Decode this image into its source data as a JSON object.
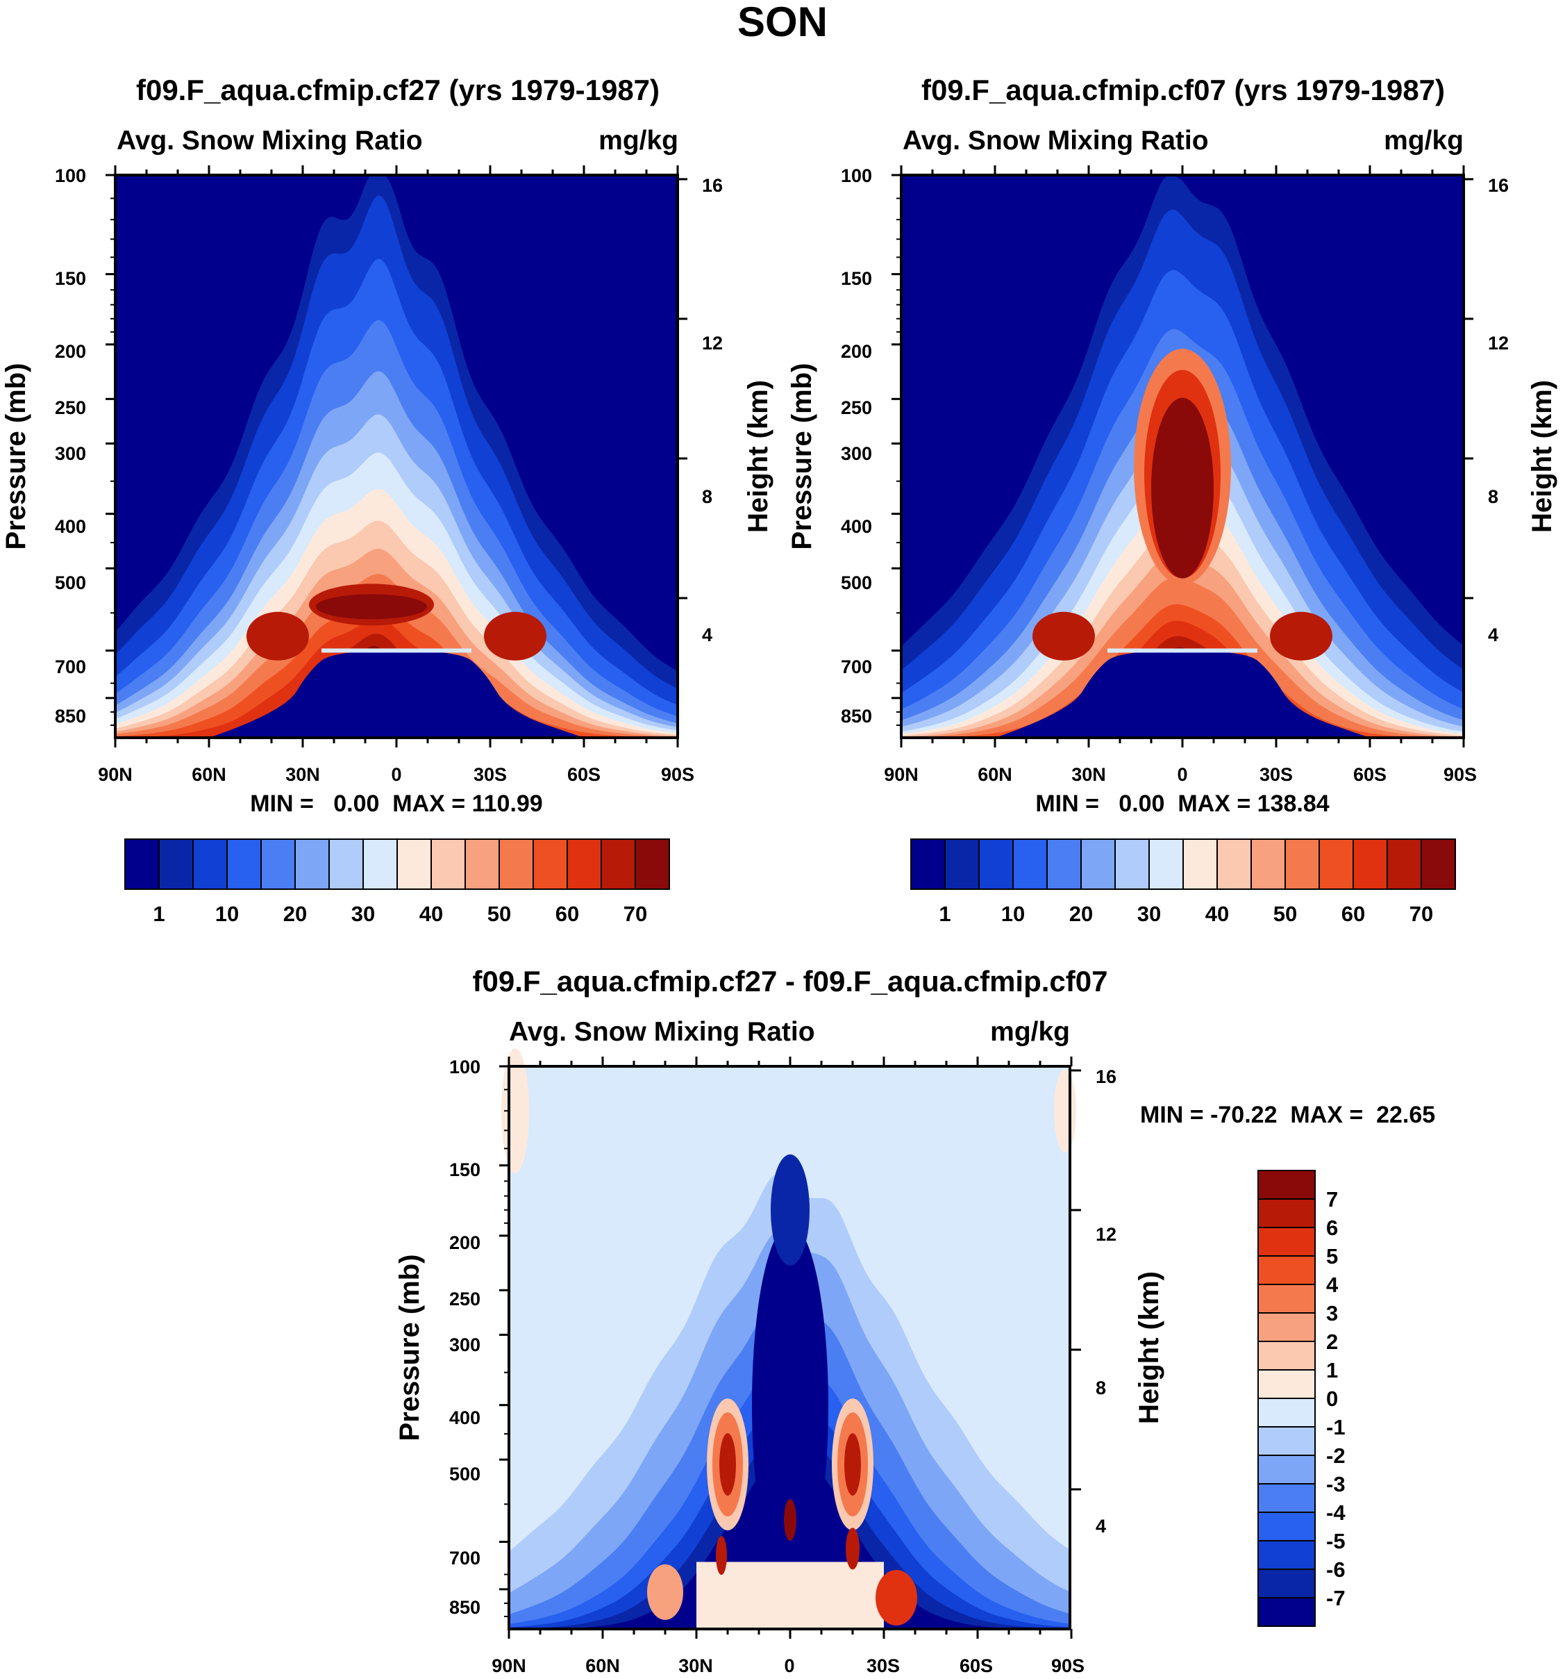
{
  "figure_title": "SON",
  "chart_data": [
    {
      "type": "heatmap",
      "title": "f09.F_aqua.cfmip.cf27 (yrs 1979-1987)",
      "left_subtitle": "Avg. Snow Mixing Ratio",
      "right_subtitle": "mg/kg",
      "xlabel": "",
      "ylabel": "Pressure (mb)",
      "ylabel_right": "Height (km)",
      "x_ticks": [
        "90N",
        "60N",
        "30N",
        "0",
        "30S",
        "60S",
        "90S"
      ],
      "x_values": [
        90,
        60,
        30,
        0,
        -30,
        -60,
        -90
      ],
      "y_ticks": [
        "100",
        "150",
        "200",
        "250",
        "300",
        "400",
        "500",
        "700",
        "850"
      ],
      "y_values": [
        100,
        150,
        200,
        250,
        300,
        400,
        500,
        700,
        850
      ],
      "y_right_ticks": [
        "16",
        "12",
        "8",
        "4"
      ],
      "y_right_values": [
        16,
        12,
        8,
        4
      ],
      "ylim": [
        100,
        1000
      ],
      "min_label": "MIN =   0.00  MAX = 110.99",
      "min": 0.0,
      "max": 110.99,
      "peak_lat": 8,
      "colorbar_labels": [
        "1",
        "10",
        "20",
        "30",
        "40",
        "50",
        "60",
        "70"
      ],
      "colorbar_colors": [
        "#00008c",
        "#0a26a8",
        "#1040d4",
        "#2860f0",
        "#4a7ef2",
        "#7ea6f6",
        "#b0ccfa",
        "#d8eafc",
        "#fde9dc",
        "#fbc8b0",
        "#f8a17e",
        "#f47a4e",
        "#ef5022",
        "#e03210",
        "#b81a08",
        "#8a0a0a"
      ]
    },
    {
      "type": "heatmap",
      "title": "f09.F_aqua.cfmip.cf07 (yrs 1979-1987)",
      "left_subtitle": "Avg. Snow Mixing Ratio",
      "right_subtitle": "mg/kg",
      "xlabel": "",
      "ylabel": "Pressure (mb)",
      "ylabel_right": "Height (km)",
      "x_ticks": [
        "90N",
        "60N",
        "30N",
        "0",
        "30S",
        "60S",
        "90S"
      ],
      "x_values": [
        90,
        60,
        30,
        0,
        -30,
        -60,
        -90
      ],
      "y_ticks": [
        "100",
        "150",
        "200",
        "250",
        "300",
        "400",
        "500",
        "700",
        "850"
      ],
      "y_values": [
        100,
        150,
        200,
        250,
        300,
        400,
        500,
        700,
        850
      ],
      "y_right_ticks": [
        "16",
        "12",
        "8",
        "4"
      ],
      "y_right_values": [
        16,
        12,
        8,
        4
      ],
      "ylim": [
        100,
        1000
      ],
      "min_label": "MIN =   0.00  MAX = 138.84",
      "min": 0.0,
      "max": 138.84,
      "peak_lat": 0,
      "colorbar_labels": [
        "1",
        "10",
        "20",
        "30",
        "40",
        "50",
        "60",
        "70"
      ],
      "colorbar_colors": [
        "#00008c",
        "#0a26a8",
        "#1040d4",
        "#2860f0",
        "#4a7ef2",
        "#7ea6f6",
        "#b0ccfa",
        "#d8eafc",
        "#fde9dc",
        "#fbc8b0",
        "#f8a17e",
        "#f47a4e",
        "#ef5022",
        "#e03210",
        "#b81a08",
        "#8a0a0a"
      ]
    },
    {
      "type": "heatmap",
      "title": "f09.F_aqua.cfmip.cf27 - f09.F_aqua.cfmip.cf07",
      "left_subtitle": "Avg. Snow Mixing Ratio",
      "right_subtitle": "mg/kg",
      "xlabel": "",
      "ylabel": "Pressure (mb)",
      "ylabel_right": "Height (km)",
      "x_ticks": [
        "90N",
        "60N",
        "30N",
        "0",
        "30S",
        "60S",
        "90S"
      ],
      "x_values": [
        90,
        60,
        30,
        0,
        -30,
        -60,
        -90
      ],
      "y_ticks": [
        "100",
        "150",
        "200",
        "250",
        "300",
        "400",
        "500",
        "700",
        "850"
      ],
      "y_values": [
        100,
        150,
        200,
        250,
        300,
        400,
        500,
        700,
        850
      ],
      "y_right_ticks": [
        "16",
        "12",
        "8",
        "4"
      ],
      "y_right_values": [
        16,
        12,
        8,
        4
      ],
      "ylim": [
        100,
        1000
      ],
      "min_label": "MIN = -70.22  MAX =  22.65",
      "min": -70.22,
      "max": 22.65,
      "colorbar_labels": [
        "7",
        "6",
        "5",
        "4",
        "3",
        "2",
        "1",
        "0",
        "-1",
        "-2",
        "-3",
        "-4",
        "-5",
        "-6",
        "-7"
      ],
      "colorbar_colors": [
        "#8a0a0a",
        "#b81a08",
        "#e03210",
        "#ef5022",
        "#f47a4e",
        "#f8a17e",
        "#fbc8b0",
        "#fde9dc",
        "#d8eafc",
        "#b0ccfa",
        "#7ea6f6",
        "#4a7ef2",
        "#2860f0",
        "#1040d4",
        "#0a26a8",
        "#00008c"
      ]
    }
  ]
}
